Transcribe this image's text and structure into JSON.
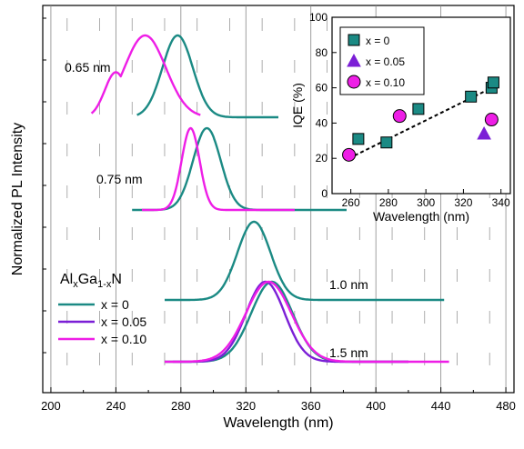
{
  "chart_data": [
    {
      "type": "line",
      "xlabel": "Wavelength (nm)",
      "ylabel": "Normalized PL Intensity",
      "xlim": [
        195,
        485
      ],
      "x_ticks": [
        200,
        240,
        280,
        320,
        360,
        400,
        440,
        480
      ],
      "grid": true,
      "legend": {
        "title": "Al",
        "title_sub1": "x",
        "title_mid": "Ga",
        "title_sub2": "1-x",
        "title_end": "N",
        "placement": "left-middle",
        "entries": [
          {
            "label": "x = 0",
            "color": "#1b8a84"
          },
          {
            "label": "x = 0.05",
            "color": "#7b1fd6"
          },
          {
            "label": "x = 0.10",
            "color": "#ee1ee6"
          }
        ]
      },
      "groups": [
        {
          "label": "0.65 nm",
          "series": [
            {
              "color": "#1b8a84",
              "peak": 278,
              "fwhm": 22,
              "base_x": [
                253,
                340
              ],
              "offset": 3
            },
            {
              "color": "#ee1ee6",
              "peak": 258,
              "fwhm": 30,
              "base_x": [
                225,
                292
              ],
              "offset": 3,
              "shoulder": 240
            }
          ]
        },
        {
          "label": "0.75 nm",
          "series": [
            {
              "color": "#1b8a84",
              "peak": 296,
              "fwhm": 20,
              "base_x": [
                250,
                382
              ],
              "offset": 2
            },
            {
              "color": "#ee1ee6",
              "peak": 286,
              "fwhm": 13,
              "base_x": [
                256,
                350
              ],
              "offset": 2
            }
          ]
        },
        {
          "label": "1.0 nm",
          "series": [
            {
              "color": "#1b8a84",
              "peak": 325,
              "fwhm": 24,
              "base_x": [
                270,
                442
              ],
              "offset": 1
            }
          ]
        },
        {
          "label": "1.5 nm",
          "series": [
            {
              "color": "#1b8a84",
              "peak": 336,
              "fwhm": 30,
              "base_x": [
                270,
                420
              ],
              "offset": 0
            },
            {
              "color": "#7b1fd6",
              "peak": 332,
              "fwhm": 28,
              "base_x": [
                275,
                420
              ],
              "offset": 0
            },
            {
              "color": "#ee1ee6",
              "peak": 334,
              "fwhm": 33,
              "base_x": [
                270,
                445
              ],
              "offset": 0
            }
          ]
        }
      ]
    },
    {
      "type": "scatter",
      "xlabel": "Wavelength (nm)",
      "ylabel": "IQE (%)",
      "xlim": [
        250,
        345
      ],
      "ylim": [
        0,
        100
      ],
      "x_ticks": [
        260,
        280,
        300,
        320,
        340
      ],
      "y_ticks": [
        0,
        20,
        40,
        60,
        80,
        100
      ],
      "legend_placement": "top-left",
      "series": [
        {
          "name": "x = 0",
          "marker": "square",
          "color": "#1b8a84",
          "x": [
            264,
            279,
            296,
            324,
            335,
            336
          ],
          "y": [
            31,
            29,
            48,
            55,
            60,
            63
          ]
        },
        {
          "name": "x = 0.05",
          "marker": "triangle",
          "color": "#7b1fd6",
          "x": [
            331
          ],
          "y": [
            34
          ]
        },
        {
          "name": "x = 0.10",
          "marker": "circle",
          "color": "#ee1ee6",
          "x": [
            259,
            286,
            335
          ],
          "y": [
            22,
            44,
            42
          ]
        }
      ],
      "trend_line": {
        "x": [
          259,
          337
        ],
        "y": [
          20,
          61
        ],
        "style": "dashed",
        "color": "#000000"
      }
    }
  ]
}
